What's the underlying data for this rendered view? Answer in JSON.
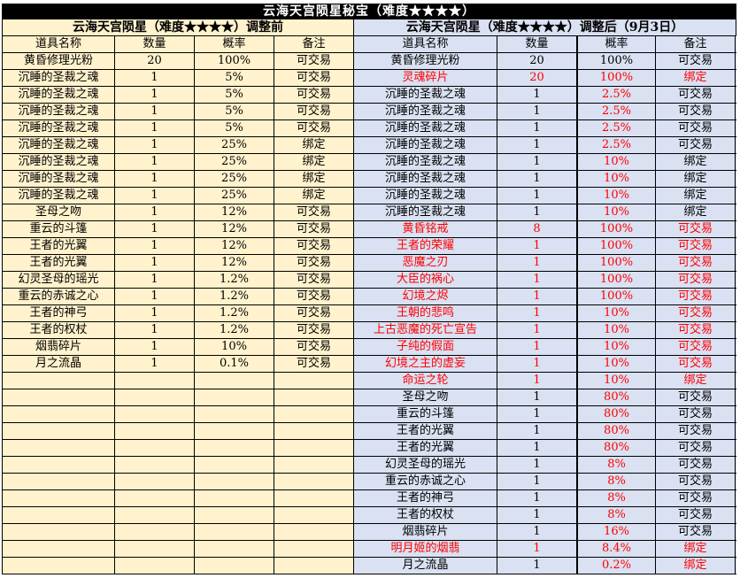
{
  "title": "云海天宫陨星秘宝（难度★★★★）",
  "colors": {
    "left_bg": "#FFF2CC",
    "right_bg": "#D9E1F2",
    "highlight": "#FF0000",
    "title_bg": "#000000"
  },
  "headers": [
    "道具名称",
    "数量",
    "概率",
    "备注"
  ],
  "before": {
    "subtitle": "云海天宫陨星（难度★★★★）调整前",
    "rows": [
      {
        "cells": [
          "黄昏修理光粉",
          "20",
          "100%",
          "可交易"
        ]
      },
      {
        "cells": [
          "沉睡的圣裁之魂",
          "1",
          "5%",
          "可交易"
        ]
      },
      {
        "cells": [
          "沉睡的圣裁之魂",
          "1",
          "5%",
          "可交易"
        ]
      },
      {
        "cells": [
          "沉睡的圣裁之魂",
          "1",
          "5%",
          "可交易"
        ]
      },
      {
        "cells": [
          "沉睡的圣裁之魂",
          "1",
          "5%",
          "可交易"
        ]
      },
      {
        "cells": [
          "沉睡的圣裁之魂",
          "1",
          "25%",
          "绑定"
        ]
      },
      {
        "cells": [
          "沉睡的圣裁之魂",
          "1",
          "25%",
          "绑定"
        ]
      },
      {
        "cells": [
          "沉睡的圣裁之魂",
          "1",
          "25%",
          "绑定"
        ]
      },
      {
        "cells": [
          "沉睡的圣裁之魂",
          "1",
          "25%",
          "绑定"
        ]
      },
      {
        "cells": [
          "圣母之吻",
          "1",
          "12%",
          "可交易"
        ]
      },
      {
        "cells": [
          "重云的斗篷",
          "1",
          "12%",
          "可交易"
        ]
      },
      {
        "cells": [
          "王者的光翼",
          "1",
          "12%",
          "可交易"
        ]
      },
      {
        "cells": [
          "王者的光翼",
          "1",
          "12%",
          "可交易"
        ]
      },
      {
        "cells": [
          "幻灵圣母的瑶光",
          "1",
          "1.2%",
          "可交易"
        ]
      },
      {
        "cells": [
          "重云的赤诚之心",
          "1",
          "1.2%",
          "可交易"
        ]
      },
      {
        "cells": [
          "王者的神弓",
          "1",
          "1.2%",
          "可交易"
        ]
      },
      {
        "cells": [
          "王者的权杖",
          "1",
          "1.2%",
          "可交易"
        ]
      },
      {
        "cells": [
          "烟翡碎片",
          "1",
          "10%",
          "可交易"
        ]
      },
      {
        "cells": [
          "月之流晶",
          "1",
          "0.1%",
          "可交易"
        ]
      }
    ]
  },
  "after": {
    "subtitle": "云海天宫陨星（难度★★★★）调整后（9月3日）",
    "rows": [
      {
        "cells": [
          "黄昏修理光粉",
          "20",
          "100%",
          "可交易"
        ],
        "red": [
          false,
          false,
          false,
          false
        ]
      },
      {
        "cells": [
          "灵魂碎片",
          "20",
          "100%",
          "绑定"
        ],
        "red": [
          true,
          true,
          true,
          true
        ]
      },
      {
        "cells": [
          "沉睡的圣裁之魂",
          "1",
          "2.5%",
          "可交易"
        ],
        "red": [
          false,
          false,
          true,
          false
        ]
      },
      {
        "cells": [
          "沉睡的圣裁之魂",
          "1",
          "2.5%",
          "可交易"
        ],
        "red": [
          false,
          false,
          true,
          false
        ]
      },
      {
        "cells": [
          "沉睡的圣裁之魂",
          "1",
          "2.5%",
          "可交易"
        ],
        "red": [
          false,
          false,
          true,
          false
        ]
      },
      {
        "cells": [
          "沉睡的圣裁之魂",
          "1",
          "2.5%",
          "可交易"
        ],
        "red": [
          false,
          false,
          true,
          false
        ]
      },
      {
        "cells": [
          "沉睡的圣裁之魂",
          "1",
          "10%",
          "绑定"
        ],
        "red": [
          false,
          false,
          true,
          false
        ]
      },
      {
        "cells": [
          "沉睡的圣裁之魂",
          "1",
          "10%",
          "绑定"
        ],
        "red": [
          false,
          false,
          true,
          false
        ]
      },
      {
        "cells": [
          "沉睡的圣裁之魂",
          "1",
          "10%",
          "绑定"
        ],
        "red": [
          false,
          false,
          true,
          false
        ]
      },
      {
        "cells": [
          "沉睡的圣裁之魂",
          "1",
          "10%",
          "绑定"
        ],
        "red": [
          false,
          false,
          true,
          false
        ]
      },
      {
        "cells": [
          "黄昏铭戒",
          "8",
          "100%",
          "可交易"
        ],
        "red": [
          true,
          true,
          true,
          true
        ]
      },
      {
        "cells": [
          "王者的荣耀",
          "1",
          "100%",
          "可交易"
        ],
        "red": [
          true,
          true,
          true,
          true
        ]
      },
      {
        "cells": [
          "恶魔之刃",
          "1",
          "100%",
          "可交易"
        ],
        "red": [
          true,
          true,
          true,
          true
        ]
      },
      {
        "cells": [
          "大臣的祸心",
          "1",
          "100%",
          "可交易"
        ],
        "red": [
          true,
          true,
          true,
          true
        ]
      },
      {
        "cells": [
          "幻境之烬",
          "1",
          "100%",
          "可交易"
        ],
        "red": [
          true,
          true,
          true,
          true
        ]
      },
      {
        "cells": [
          "王朝的悲鸣",
          "1",
          "10%",
          "可交易"
        ],
        "red": [
          true,
          true,
          true,
          true
        ]
      },
      {
        "cells": [
          "上古恶魔的死亡宣告",
          "1",
          "10%",
          "可交易"
        ],
        "red": [
          true,
          true,
          true,
          true
        ]
      },
      {
        "cells": [
          "子纯的假面",
          "1",
          "10%",
          "可交易"
        ],
        "red": [
          true,
          true,
          true,
          true
        ]
      },
      {
        "cells": [
          "幻境之主的虚妄",
          "1",
          "10%",
          "可交易"
        ],
        "red": [
          true,
          true,
          true,
          true
        ]
      },
      {
        "cells": [
          "命运之轮",
          "1",
          "10%",
          "绑定"
        ],
        "red": [
          true,
          true,
          true,
          true
        ]
      },
      {
        "cells": [
          "圣母之吻",
          "1",
          "80%",
          "可交易"
        ],
        "red": [
          false,
          false,
          true,
          false
        ]
      },
      {
        "cells": [
          "重云的斗篷",
          "1",
          "80%",
          "可交易"
        ],
        "red": [
          false,
          false,
          true,
          false
        ]
      },
      {
        "cells": [
          "王者的光翼",
          "1",
          "80%",
          "可交易"
        ],
        "red": [
          false,
          false,
          true,
          false
        ]
      },
      {
        "cells": [
          "王者的光翼",
          "1",
          "80%",
          "可交易"
        ],
        "red": [
          false,
          false,
          true,
          false
        ]
      },
      {
        "cells": [
          "幻灵圣母的瑶光",
          "1",
          "8%",
          "可交易"
        ],
        "red": [
          false,
          false,
          true,
          false
        ]
      },
      {
        "cells": [
          "重云的赤诚之心",
          "1",
          "8%",
          "可交易"
        ],
        "red": [
          false,
          false,
          true,
          false
        ]
      },
      {
        "cells": [
          "王者的神弓",
          "1",
          "8%",
          "可交易"
        ],
        "red": [
          false,
          false,
          true,
          false
        ]
      },
      {
        "cells": [
          "王者的权杖",
          "1",
          "8%",
          "可交易"
        ],
        "red": [
          false,
          false,
          true,
          false
        ]
      },
      {
        "cells": [
          "烟翡碎片",
          "1",
          "16%",
          "可交易"
        ],
        "red": [
          false,
          false,
          true,
          false
        ]
      },
      {
        "cells": [
          "明月姬的烟翡",
          "1",
          "8.4%",
          "绑定"
        ],
        "red": [
          true,
          true,
          true,
          true
        ]
      },
      {
        "cells": [
          "月之流晶",
          "1",
          "0.2%",
          "绑定"
        ],
        "red": [
          false,
          false,
          true,
          true
        ]
      }
    ]
  }
}
